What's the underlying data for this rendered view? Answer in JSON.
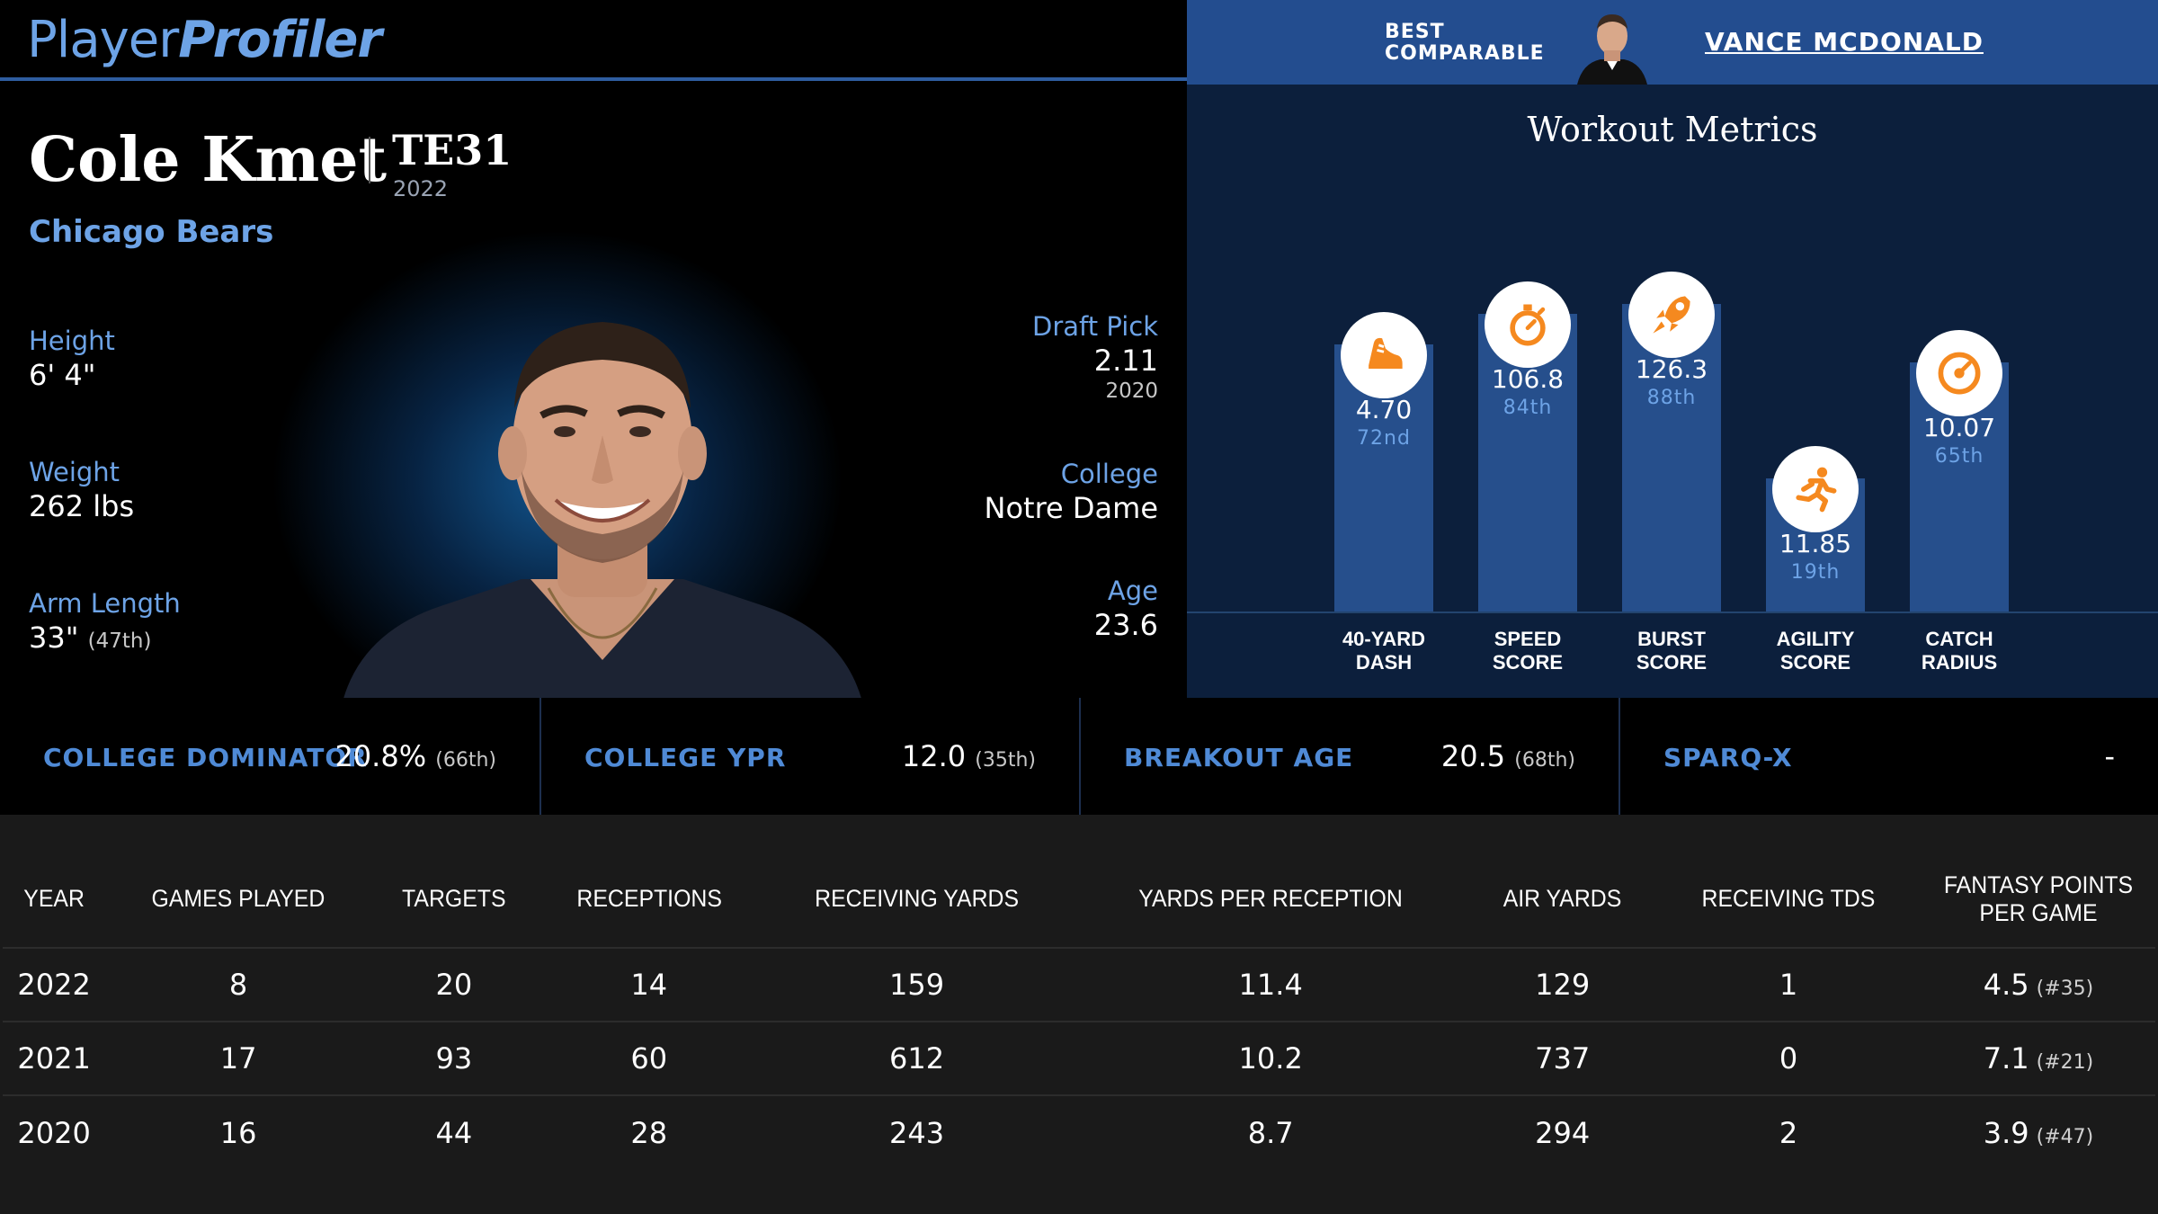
{
  "brand": {
    "part1": "Player",
    "part2": "Profiler"
  },
  "comparable": {
    "label_line1": "BEST",
    "label_line2": "COMPARABLE",
    "name": "VANCE MCDONALD"
  },
  "player": {
    "name": "Cole Kmet",
    "position": "TE31",
    "position_year": "2022",
    "team": "Chicago Bears"
  },
  "bio": {
    "height_label": "Height",
    "height": "6' 4\"",
    "weight_label": "Weight",
    "weight": "262 lbs",
    "arm_label": "Arm Length",
    "arm": "33\"",
    "arm_rank": "(47th)",
    "draft_label": "Draft Pick",
    "draft": "2.11",
    "draft_year": "2020",
    "college_label": "College",
    "college": "Notre Dame",
    "age_label": "Age",
    "age": "23.6"
  },
  "workout": {
    "title": "Workout Metrics",
    "metrics": [
      {
        "value": "4.70",
        "percentile": "72nd",
        "label1": "40-YARD",
        "label2": "DASH",
        "pct": 72,
        "icon": "shoe-icon"
      },
      {
        "value": "106.8",
        "percentile": "84th",
        "label1": "SPEED",
        "label2": "SCORE",
        "pct": 84,
        "icon": "stopwatch-icon"
      },
      {
        "value": "126.3",
        "percentile": "88th",
        "label1": "BURST",
        "label2": "SCORE",
        "pct": 88,
        "icon": "rocket-icon"
      },
      {
        "value": "11.85",
        "percentile": "19th",
        "label1": "AGILITY",
        "label2": "SCORE",
        "pct": 19,
        "icon": "runner-icon"
      },
      {
        "value": "10.07",
        "percentile": "65th",
        "label1": "CATCH",
        "label2": "RADIUS",
        "pct": 65,
        "icon": "target-icon"
      }
    ],
    "accent": "#f5891f"
  },
  "college_metrics": [
    {
      "label": "COLLEGE DOMINATOR",
      "value": "20.8%",
      "rank": "(66th)"
    },
    {
      "label": "COLLEGE YPR",
      "value": "12.0",
      "rank": "(35th)"
    },
    {
      "label": "BREAKOUT AGE",
      "value": "20.5",
      "rank": "(68th)"
    },
    {
      "label": "SPARQ-X",
      "value": "-",
      "rank": ""
    }
  ],
  "stats_table": {
    "headers": [
      "YEAR",
      "GAMES PLAYED",
      "TARGETS",
      "RECEPTIONS",
      "RECEIVING YARDS",
      "YARDS PER RECEPTION",
      "AIR YARDS",
      "RECEIVING TDS",
      "FANTASY POINTS PER GAME"
    ],
    "rows": [
      {
        "year": "2022",
        "games": "8",
        "targets": "20",
        "receptions": "14",
        "yards": "159",
        "ypr": "11.4",
        "air": "129",
        "tds": "1",
        "fppg": "4.5",
        "fppg_rank": "(#35)"
      },
      {
        "year": "2021",
        "games": "17",
        "targets": "93",
        "receptions": "60",
        "yards": "612",
        "ypr": "10.2",
        "air": "737",
        "tds": "0",
        "fppg": "7.1",
        "fppg_rank": "(#21)"
      },
      {
        "year": "2020",
        "games": "16",
        "targets": "44",
        "receptions": "28",
        "yards": "243",
        "ypr": "8.7",
        "air": "294",
        "tds": "2",
        "fppg": "3.9",
        "fppg_rank": "(#47)"
      }
    ]
  }
}
